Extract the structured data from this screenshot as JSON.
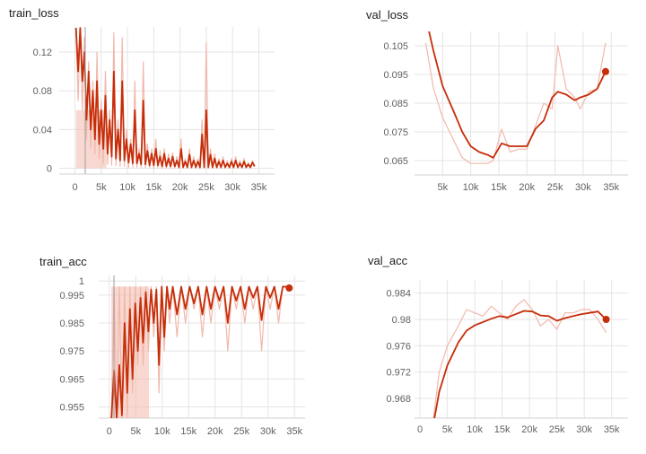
{
  "chart_data": [
    {
      "type": "line",
      "title": "train_loss",
      "xlabel": "",
      "ylabel": "",
      "xlim": [
        -3000,
        38000
      ],
      "ylim": [
        -0.006,
        0.146
      ],
      "xticks": [
        0,
        5000,
        10000,
        15000,
        20000,
        25000,
        30000,
        35000
      ],
      "xtick_labels": [
        "0",
        "5k",
        "10k",
        "15k",
        "20k",
        "25k",
        "30k",
        "35k"
      ],
      "yticks": [
        0,
        0.04,
        0.08,
        0.12
      ],
      "ytick_labels": [
        "0",
        "0.04",
        "0.08",
        "0.12"
      ],
      "grid": true,
      "legend": "none",
      "color_smoothed": "#c62d09",
      "color_raw": "#f2b8ab",
      "series": [
        {
          "style": "raw",
          "x": [
            200,
            600,
            1000,
            1400,
            1800,
            2200,
            2600,
            3000,
            3400,
            3800,
            4200,
            4600,
            5000,
            5400,
            5800,
            6200,
            6600,
            7000,
            7400,
            7800,
            8200,
            8600,
            9000,
            9400,
            9800,
            10200,
            10600,
            11000,
            11400,
            11800,
            12200,
            12600,
            13000,
            13400,
            13800,
            14200,
            14600,
            15000,
            15400,
            15800,
            16200,
            16600,
            17000,
            17400,
            17800,
            18200,
            18600,
            19000,
            19400,
            19800,
            20200,
            20600,
            21000,
            21400,
            21800,
            22200,
            22600,
            23000,
            23400,
            23800,
            24200,
            24600,
            25000,
            25400,
            25800,
            26200,
            26600,
            27000,
            27400,
            27800,
            28200,
            28600,
            29000,
            29400,
            29800,
            30200,
            30600,
            31000,
            31400,
            31800,
            32200,
            32600,
            33000,
            33400,
            33800,
            34200
          ],
          "values": [
            0.145,
            0.07,
            0.145,
            0.06,
            0.135,
            0.03,
            0.11,
            0.02,
            0.09,
            0.015,
            0.12,
            0.01,
            0.07,
            0.005,
            0.1,
            0.004,
            0.06,
            0.003,
            0.14,
            0.003,
            0.05,
            0.002,
            0.135,
            0.002,
            0.04,
            0.001,
            0.03,
            0.001,
            0.09,
            0.001,
            0.02,
            0.001,
            0.11,
            0.001,
            0.025,
            0.001,
            0.02,
            0.0,
            0.03,
            0.001,
            0.018,
            0.0,
            0.02,
            0.0,
            0.015,
            0.0,
            0.016,
            0.0,
            0.012,
            0.0,
            0.03,
            0.0,
            0.01,
            0.0,
            0.02,
            0.0,
            0.012,
            0.0,
            0.01,
            0.0,
            0.05,
            0.0,
            0.13,
            0.0,
            0.02,
            0.0,
            0.015,
            0.0,
            0.01,
            0.0,
            0.012,
            0.0,
            0.008,
            0.0,
            0.01,
            0.0,
            0.012,
            0.0,
            0.008,
            0.0,
            0.01,
            0.0,
            0.006,
            0.0,
            0.008,
            0.002
          ]
        },
        {
          "style": "smoothed",
          "x": [
            200,
            600,
            1000,
            1400,
            1800,
            2200,
            2600,
            3000,
            3400,
            3800,
            4200,
            4600,
            5000,
            5400,
            5800,
            6200,
            6600,
            7000,
            7400,
            7800,
            8200,
            8600,
            9000,
            9400,
            9800,
            10200,
            10600,
            11000,
            11400,
            11800,
            12200,
            12600,
            13000,
            13400,
            13800,
            14200,
            14600,
            15000,
            15400,
            15800,
            16200,
            16600,
            17000,
            17400,
            17800,
            18200,
            18600,
            19000,
            19400,
            19800,
            20200,
            20600,
            21000,
            21400,
            21800,
            22200,
            22600,
            23000,
            23400,
            23800,
            24200,
            24600,
            25000,
            25400,
            25800,
            26200,
            26600,
            27000,
            27400,
            27800,
            28200,
            28600,
            29000,
            29400,
            29800,
            30200,
            30600,
            31000,
            31400,
            31800,
            32200,
            32600,
            33000,
            33400,
            33800,
            34200
          ],
          "values": [
            0.145,
            0.1,
            0.145,
            0.09,
            0.12,
            0.05,
            0.1,
            0.04,
            0.08,
            0.03,
            0.09,
            0.025,
            0.06,
            0.02,
            0.075,
            0.015,
            0.05,
            0.012,
            0.1,
            0.01,
            0.04,
            0.008,
            0.09,
            0.008,
            0.03,
            0.006,
            0.025,
            0.005,
            0.06,
            0.005,
            0.015,
            0.004,
            0.07,
            0.004,
            0.018,
            0.003,
            0.015,
            0.003,
            0.02,
            0.003,
            0.012,
            0.002,
            0.015,
            0.002,
            0.01,
            0.002,
            0.012,
            0.002,
            0.008,
            0.001,
            0.02,
            0.001,
            0.007,
            0.001,
            0.014,
            0.001,
            0.008,
            0.001,
            0.007,
            0.001,
            0.035,
            0.001,
            0.06,
            0.001,
            0.014,
            0.001,
            0.01,
            0.001,
            0.007,
            0.001,
            0.008,
            0.001,
            0.005,
            0.001,
            0.007,
            0.001,
            0.008,
            0.001,
            0.005,
            0.001,
            0.007,
            0.001,
            0.004,
            0.001,
            0.006,
            0.002
          ]
        }
      ]
    },
    {
      "type": "line",
      "title": "val_loss",
      "xlabel": "",
      "ylabel": "",
      "xlim": [
        0,
        38000
      ],
      "ylim": [
        0.06,
        0.11
      ],
      "xticks": [
        5000,
        10000,
        15000,
        20000,
        25000,
        30000,
        35000
      ],
      "xtick_labels": [
        "5k",
        "10k",
        "15k",
        "20k",
        "25k",
        "30k",
        "35k"
      ],
      "yticks": [
        0.065,
        0.075,
        0.085,
        0.095,
        0.105
      ],
      "ytick_labels": [
        "0.065",
        "0.075",
        "0.085",
        "0.095",
        "0.105"
      ],
      "grid": true,
      "legend": "none",
      "color_smoothed": "#c62d09",
      "color_raw": "#f2b8ab",
      "series": [
        {
          "style": "raw",
          "x": [
            2000,
            3400,
            5000,
            7000,
            8500,
            10000,
            11500,
            13000,
            14000,
            15500,
            17000,
            18500,
            20000,
            21500,
            23000,
            24500,
            25500,
            27000,
            28500,
            29500,
            31000,
            32500,
            34000
          ],
          "values": [
            0.106,
            0.09,
            0.08,
            0.072,
            0.066,
            0.064,
            0.064,
            0.064,
            0.065,
            0.076,
            0.068,
            0.069,
            0.069,
            0.077,
            0.085,
            0.083,
            0.105,
            0.09,
            0.087,
            0.083,
            0.089,
            0.09,
            0.106
          ]
        },
        {
          "style": "smoothed",
          "x": [
            2000,
            3400,
            5000,
            7000,
            8500,
            10000,
            11500,
            13000,
            14000,
            15500,
            17000,
            18500,
            20000,
            21500,
            23000,
            24500,
            25500,
            27000,
            28500,
            29500,
            31000,
            32500,
            34000
          ],
          "values": [
            0.115,
            0.103,
            0.091,
            0.082,
            0.075,
            0.07,
            0.068,
            0.067,
            0.066,
            0.071,
            0.07,
            0.07,
            0.07,
            0.076,
            0.079,
            0.087,
            0.089,
            0.088,
            0.086,
            0.087,
            0.088,
            0.09,
            0.096
          ]
        }
      ],
      "endpoint": {
        "x": 34000,
        "value": 0.096
      }
    },
    {
      "type": "line",
      "title": "train_acc",
      "xlabel": "",
      "ylabel": "",
      "xlim": [
        -2000,
        37000
      ],
      "ylim": [
        0.951,
        1.002
      ],
      "xticks": [
        0,
        5000,
        10000,
        15000,
        20000,
        25000,
        30000,
        35000
      ],
      "xtick_labels": [
        "0",
        "5k",
        "10k",
        "15k",
        "20k",
        "25k",
        "30k",
        "35k"
      ],
      "yticks": [
        0.955,
        0.965,
        0.975,
        0.985,
        0.995,
        1
      ],
      "ytick_labels": [
        "0.955",
        "0.965",
        "0.975",
        "0.985",
        "0.995",
        "1"
      ],
      "grid": true,
      "legend": "none",
      "color_smoothed": "#c62d09",
      "color_raw": "#f2b8ab",
      "series": [
        {
          "style": "raw",
          "x": [
            400,
            900,
            1400,
            1900,
            2400,
            2900,
            3400,
            3900,
            4400,
            4900,
            5400,
            5900,
            6400,
            6900,
            7400,
            7900,
            8400,
            8900,
            9400,
            9900,
            10400,
            10900,
            11400,
            12000,
            12800,
            13600,
            14400,
            15200,
            16000,
            16800,
            17600,
            18400,
            19200,
            20000,
            20800,
            21600,
            22400,
            23200,
            24000,
            24800,
            25600,
            26400,
            27200,
            28000,
            28800,
            29600,
            30400,
            31200,
            32000,
            32800,
            33600
          ],
          "values": [
            0.951,
            0.998,
            0.951,
            0.998,
            0.951,
            0.998,
            0.951,
            0.998,
            0.96,
            0.998,
            0.97,
            0.998,
            0.97,
            0.998,
            0.975,
            0.998,
            0.98,
            0.998,
            0.96,
            0.998,
            0.975,
            0.998,
            0.985,
            0.998,
            0.98,
            0.998,
            0.985,
            0.998,
            0.99,
            0.998,
            0.98,
            0.998,
            0.985,
            0.998,
            0.99,
            0.998,
            0.975,
            0.998,
            0.99,
            0.998,
            0.985,
            0.998,
            0.99,
            0.998,
            0.975,
            0.998,
            0.99,
            0.998,
            0.985,
            0.998,
            0.998
          ]
        },
        {
          "style": "smoothed",
          "x": [
            400,
            900,
            1400,
            1900,
            2400,
            2900,
            3400,
            3900,
            4400,
            4900,
            5400,
            5900,
            6400,
            6900,
            7400,
            7900,
            8400,
            8900,
            9400,
            9900,
            10400,
            10900,
            11400,
            12000,
            12800,
            13600,
            14400,
            15200,
            16000,
            16800,
            17600,
            18400,
            19200,
            20000,
            20800,
            21600,
            22400,
            23200,
            24000,
            24800,
            25600,
            26400,
            27200,
            28000,
            28800,
            29600,
            30400,
            31200,
            32000,
            32800,
            33600
          ],
          "values": [
            0.951,
            0.968,
            0.951,
            0.97,
            0.952,
            0.985,
            0.96,
            0.99,
            0.965,
            0.992,
            0.975,
            0.994,
            0.978,
            0.996,
            0.982,
            0.997,
            0.985,
            0.997,
            0.97,
            0.998,
            0.98,
            0.998,
            0.99,
            0.998,
            0.988,
            0.998,
            0.99,
            0.998,
            0.992,
            0.998,
            0.988,
            0.998,
            0.99,
            0.998,
            0.993,
            0.998,
            0.985,
            0.998,
            0.993,
            0.998,
            0.99,
            0.998,
            0.994,
            0.998,
            0.986,
            0.998,
            0.994,
            0.998,
            0.99,
            0.998,
            0.998
          ]
        }
      ],
      "endpoint": {
        "x": 34000,
        "value": 0.9975
      }
    },
    {
      "type": "line",
      "title": "val_acc",
      "xlabel": "",
      "ylabel": "",
      "xlim": [
        -1000,
        38000
      ],
      "ylim": [
        0.965,
        0.986
      ],
      "xticks": [
        0,
        5000,
        10000,
        15000,
        20000,
        25000,
        30000,
        35000
      ],
      "xtick_labels": [
        "0",
        "5k",
        "10k",
        "15k",
        "20k",
        "25k",
        "30k",
        "35k"
      ],
      "yticks": [
        0.968,
        0.972,
        0.976,
        0.98,
        0.984
      ],
      "ytick_labels": [
        "0.968",
        "0.972",
        "0.976",
        "0.98",
        "0.984"
      ],
      "grid": true,
      "legend": "none",
      "color_smoothed": "#c62d09",
      "color_raw": "#f2b8ab",
      "series": [
        {
          "style": "raw",
          "x": [
            2000,
            3500,
            5000,
            7000,
            8500,
            10000,
            11500,
            13000,
            14500,
            16000,
            17500,
            19000,
            20500,
            22000,
            23500,
            25000,
            26500,
            28000,
            29500,
            31000,
            32500,
            34000
          ],
          "values": [
            0.962,
            0.972,
            0.976,
            0.979,
            0.9815,
            0.981,
            0.9805,
            0.982,
            0.981,
            0.98,
            0.982,
            0.983,
            0.9815,
            0.979,
            0.98,
            0.9785,
            0.981,
            0.981,
            0.9815,
            0.9815,
            0.98,
            0.978
          ]
        },
        {
          "style": "smoothed",
          "x": [
            2000,
            3500,
            5000,
            7000,
            8500,
            10000,
            11500,
            13000,
            14500,
            16000,
            17500,
            19000,
            20500,
            22000,
            23500,
            25000,
            26500,
            28000,
            29500,
            31000,
            32500,
            34000
          ],
          "values": [
            0.962,
            0.969,
            0.973,
            0.9765,
            0.9783,
            0.9791,
            0.9796,
            0.9801,
            0.9805,
            0.9803,
            0.9808,
            0.9813,
            0.9812,
            0.9806,
            0.9805,
            0.9798,
            0.9802,
            0.9805,
            0.9808,
            0.981,
            0.9812,
            0.98
          ]
        }
      ],
      "endpoint": {
        "x": 34000,
        "value": 0.98
      }
    }
  ]
}
